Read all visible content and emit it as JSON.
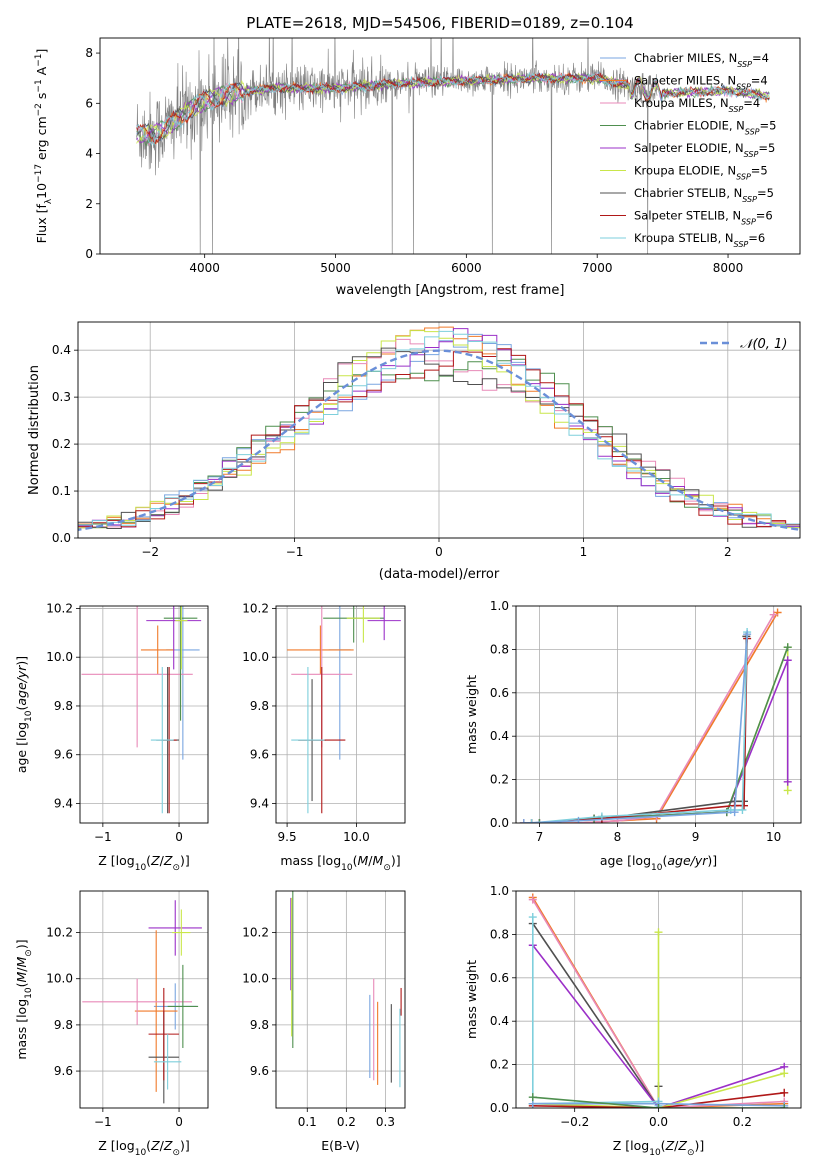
{
  "figure": {
    "title": "PLATE=2618, MJD=54506, FIBERID=0189, z=0.104"
  },
  "colors": {
    "chabrier_miles": "#7aa6e0",
    "salpeter_miles": "#f07a2a",
    "kroupa_miles": "#e88ab8",
    "chabrier_elodie": "#4f8f4f",
    "salpeter_elodie": "#9b30c8",
    "kroupa_elodie": "#c9e64a",
    "chabrier_stelib": "#505050",
    "salpeter_stelib": "#b01818",
    "kroupa_stelib": "#7ecfdc",
    "data_gray": "#808080",
    "normal_curve": "#6a8fd8"
  },
  "chart_data": [
    {
      "id": "spectrum",
      "type": "line",
      "xlabel": "wavelength [Angstrom, rest frame]",
      "ylabel": "Flux [f_λ10^-17 erg cm^-2 s^-1 A^-1]",
      "xlim": [
        3200,
        8550
      ],
      "ylim": [
        0,
        8.6
      ],
      "xticks": [
        "4000",
        "5000",
        "6000",
        "7000",
        "8000"
      ],
      "yticks": [
        "0",
        "2",
        "4",
        "6",
        "8"
      ],
      "grid": false,
      "legend_position": "right",
      "legend": [
        {
          "imf": "Chabrier",
          "lib": "MILES",
          "n": "4",
          "color_key": "chabrier_miles"
        },
        {
          "imf": "Salpeter",
          "lib": "MILES",
          "n": "4",
          "color_key": "salpeter_miles"
        },
        {
          "imf": "Kroupa",
          "lib": "MILES",
          "n": "4",
          "color_key": "kroupa_miles"
        },
        {
          "imf": "Chabrier",
          "lib": "ELODIE",
          "n": "5",
          "color_key": "chabrier_elodie"
        },
        {
          "imf": "Salpeter",
          "lib": "ELODIE",
          "n": "5",
          "color_key": "salpeter_elodie"
        },
        {
          "imf": "Kroupa",
          "lib": "ELODIE",
          "n": "5",
          "color_key": "kroupa_elodie"
        },
        {
          "imf": "Chabrier",
          "lib": "STELIB",
          "n": "5",
          "color_key": "chabrier_stelib"
        },
        {
          "imf": "Salpeter",
          "lib": "STELIB",
          "n": "6",
          "color_key": "salpeter_stelib"
        },
        {
          "imf": "Kroupa",
          "lib": "STELIB",
          "n": "6",
          "color_key": "kroupa_stelib"
        }
      ],
      "continuum_knots": [
        [
          3480,
          4.8
        ],
        [
          3600,
          4.75
        ],
        [
          3700,
          5.0
        ],
        [
          3800,
          5.4
        ],
        [
          3900,
          5.8
        ],
        [
          4000,
          6.1
        ],
        [
          4200,
          6.4
        ],
        [
          4500,
          6.6
        ],
        [
          5000,
          6.6
        ],
        [
          5500,
          6.8
        ],
        [
          6000,
          6.9
        ],
        [
          6500,
          7.0
        ],
        [
          7000,
          7.0
        ],
        [
          7300,
          6.6
        ],
        [
          7500,
          6.4
        ],
        [
          8000,
          6.5
        ],
        [
          8300,
          6.3
        ]
      ],
      "model_range": [
        3480,
        8320
      ],
      "data_range": [
        3480,
        7460
      ]
    },
    {
      "id": "residuals",
      "type": "line",
      "xlabel": "(data-model)/error",
      "ylabel": "Normed distribution",
      "xlim": [
        -2.5,
        2.5
      ],
      "ylim": [
        0,
        0.46
      ],
      "xticks": [
        "−2",
        "−1",
        "0",
        "1",
        "2"
      ],
      "yticks": [
        "0.0",
        "0.1",
        "0.2",
        "0.3",
        "0.4"
      ],
      "grid": true,
      "legend_position": "top-right",
      "legend_label": "𝒩(0, 1)",
      "bin_width": 0.1,
      "normal": {
        "mu": 0,
        "sigma": 1
      }
    },
    {
      "id": "age_vs_Z",
      "type": "scatter",
      "xlabel": "Z [log10(Z/Z⊙)]",
      "ylabel": "age [log10(age/yr)]",
      "xlim": [
        -1.3,
        0.38
      ],
      "ylim": [
        9.32,
        10.21
      ],
      "xticks": [
        "−1",
        "0"
      ],
      "yticks": [
        "9.4",
        "9.6",
        "9.8",
        "10.0",
        "10.2"
      ],
      "grid": true,
      "points": [
        {
          "color_key": "chabrier_miles",
          "x": 0.05,
          "xerr": 0.22,
          "y": 10.03,
          "yerr": 0.45
        },
        {
          "color_key": "salpeter_miles",
          "x": -0.28,
          "xerr": 0.22,
          "y": 10.03,
          "yerr": 0.1
        },
        {
          "color_key": "kroupa_miles",
          "x": -0.55,
          "xerr": 0.73,
          "y": 9.93,
          "yerr": 0.3
        },
        {
          "color_key": "chabrier_elodie",
          "x": 0.02,
          "xerr": 0.22,
          "y": 10.16,
          "yerr": 0.42
        },
        {
          "color_key": "salpeter_elodie",
          "x": -0.07,
          "xerr": 0.36,
          "y": 10.15,
          "yerr": 0.2
        },
        {
          "color_key": "kroupa_elodie",
          "x": 0.03,
          "xerr": 0.08,
          "y": 10.15,
          "yerr": 0.2
        },
        {
          "color_key": "chabrier_stelib",
          "x": -0.15,
          "xerr": 0.15,
          "y": 9.66,
          "yerr": 0.3
        },
        {
          "color_key": "salpeter_stelib",
          "x": -0.13,
          "xerr": 0.1,
          "y": 9.66,
          "yerr": 0.3
        },
        {
          "color_key": "kroupa_stelib",
          "x": -0.22,
          "xerr": 0.15,
          "y": 9.66,
          "yerr": 0.3
        }
      ]
    },
    {
      "id": "age_vs_mass",
      "type": "scatter",
      "xlabel": "mass [log10(M/M⊙)]",
      "ylabel": "",
      "xlim": [
        9.42,
        10.35
      ],
      "ylim": [
        9.32,
        10.21
      ],
      "xticks": [
        "9.5",
        "10.0"
      ],
      "yticks": [
        "9.4",
        "9.6",
        "9.8",
        "10.0",
        "10.2"
      ],
      "grid": true,
      "points": [
        {
          "color_key": "chabrier_miles",
          "x": 9.88,
          "xerr": 0.08,
          "y": 10.03,
          "yerr": 0.45
        },
        {
          "color_key": "salpeter_miles",
          "x": 9.74,
          "xerr": 0.24,
          "y": 10.03,
          "yerr": 0.1
        },
        {
          "color_key": "kroupa_miles",
          "x": 9.75,
          "xerr": 0.22,
          "y": 9.93,
          "yerr": 0.3
        },
        {
          "color_key": "chabrier_elodie",
          "x": 9.98,
          "xerr": 0.22,
          "y": 10.16,
          "yerr": 0.1
        },
        {
          "color_key": "salpeter_elodie",
          "x": 10.2,
          "xerr": 0.12,
          "y": 10.15,
          "yerr": 0.08
        },
        {
          "color_key": "kroupa_elodie",
          "x": 10.05,
          "xerr": 0.12,
          "y": 10.16,
          "yerr": 0.1
        },
        {
          "color_key": "chabrier_stelib",
          "x": 9.68,
          "xerr": 0.1,
          "y": 9.66,
          "yerr": 0.25
        },
        {
          "color_key": "salpeter_stelib",
          "x": 9.75,
          "xerr": 0.17,
          "y": 9.66,
          "yerr": 0.3
        },
        {
          "color_key": "kroupa_stelib",
          "x": 9.65,
          "xerr": 0.12,
          "y": 9.66,
          "yerr": 0.3
        }
      ]
    },
    {
      "id": "mass_weight_vs_age",
      "type": "line",
      "xlabel": "age [log10(age/yr)]",
      "ylabel": "mass weight",
      "xlim": [
        6.7,
        10.35
      ],
      "ylim": [
        0,
        1.0
      ],
      "xticks": [
        "7",
        "8",
        "9",
        "10"
      ],
      "yticks": [
        "0.0",
        "0.2",
        "0.4",
        "0.6",
        "0.8",
        "1.0"
      ],
      "grid": true,
      "series": [
        {
          "color_key": "salpeter_miles",
          "x": [
            6.8,
            7.5,
            8.0,
            8.5,
            10.05
          ],
          "y": [
            0.0,
            0.0,
            0.01,
            0.02,
            0.97
          ]
        },
        {
          "color_key": "kroupa_miles",
          "x": [
            6.8,
            7.5,
            8.0,
            8.5,
            10.0
          ],
          "y": [
            0.0,
            0.0,
            0.01,
            0.03,
            0.96
          ]
        },
        {
          "color_key": "kroupa_elodie",
          "x": [
            7.0,
            7.7,
            9.4,
            10.18,
            10.18
          ],
          "y": [
            0.0,
            0.02,
            0.05,
            0.81,
            0.15
          ]
        },
        {
          "color_key": "salpeter_elodie",
          "x": [
            7.0,
            7.7,
            9.4,
            10.18,
            10.18
          ],
          "y": [
            0.0,
            0.02,
            0.05,
            0.75,
            0.19
          ]
        },
        {
          "color_key": "chabrier_elodie",
          "x": [
            7.0,
            7.7,
            9.4,
            10.18
          ],
          "y": [
            0.0,
            0.02,
            0.05,
            0.81
          ]
        },
        {
          "color_key": "chabrier_stelib",
          "x": [
            6.9,
            7.8,
            9.5,
            9.62,
            9.65
          ],
          "y": [
            0.0,
            0.02,
            0.1,
            0.1,
            0.86
          ]
        },
        {
          "color_key": "salpeter_stelib",
          "x": [
            6.9,
            7.8,
            9.5,
            9.62,
            9.66
          ],
          "y": [
            0.0,
            0.02,
            0.08,
            0.08,
            0.85
          ]
        },
        {
          "color_key": "kroupa_stelib",
          "x": [
            6.9,
            7.8,
            9.45,
            9.6,
            9.66
          ],
          "y": [
            0.0,
            0.03,
            0.06,
            0.06,
            0.88
          ]
        },
        {
          "color_key": "chabrier_miles",
          "x": [
            6.8,
            7.5,
            9.5,
            9.66
          ],
          "y": [
            0.0,
            0.01,
            0.05,
            0.87
          ]
        }
      ]
    },
    {
      "id": "mass_vs_Z",
      "type": "scatter",
      "xlabel": "Z [log10(Z/Z⊙)]",
      "ylabel": "mass [log10(M/M⊙)]",
      "xlim": [
        -1.3,
        0.38
      ],
      "ylim": [
        9.44,
        10.38
      ],
      "xticks": [
        "−1",
        "0"
      ],
      "yticks": [
        "9.6",
        "9.8",
        "10.0",
        "10.2"
      ],
      "grid": true,
      "points": [
        {
          "color_key": "chabrier_miles",
          "x": -0.05,
          "xerr": 0.28,
          "y": 9.88,
          "yerr": 0.1
        },
        {
          "color_key": "salpeter_miles",
          "x": -0.3,
          "xerr": 0.28,
          "y": 9.86,
          "yerr": 0.35
        },
        {
          "color_key": "kroupa_miles",
          "x": -0.55,
          "xerr": 0.72,
          "y": 9.9,
          "yerr": 0.1
        },
        {
          "color_key": "chabrier_elodie",
          "x": 0.05,
          "xerr": 0.2,
          "y": 9.88,
          "yerr": 0.18
        },
        {
          "color_key": "salpeter_elodie",
          "x": -0.05,
          "xerr": 0.35,
          "y": 10.22,
          "yerr": 0.12
        },
        {
          "color_key": "kroupa_elodie",
          "x": 0.03,
          "xerr": 0.12,
          "y": 10.2,
          "yerr": 0.1
        },
        {
          "color_key": "chabrier_stelib",
          "x": -0.2,
          "xerr": 0.2,
          "y": 9.66,
          "yerr": 0.2
        },
        {
          "color_key": "salpeter_stelib",
          "x": -0.2,
          "xerr": 0.2,
          "y": 9.76,
          "yerr": 0.2
        },
        {
          "color_key": "kroupa_stelib",
          "x": -0.15,
          "xerr": 0.18,
          "y": 9.64,
          "yerr": 0.12
        }
      ]
    },
    {
      "id": "mass_vs_EBV",
      "type": "scatter",
      "xlabel": "E(B-V)",
      "ylabel": "",
      "xlim": [
        0.02,
        0.35
      ],
      "ylim": [
        9.44,
        10.38
      ],
      "xticks": [
        "0.1",
        "0.2",
        "0.3"
      ],
      "yticks": [
        "9.6",
        "9.8",
        "10.0",
        "10.2"
      ],
      "grid": true,
      "points": [
        {
          "color_key": "chabrier_elodie",
          "x": 0.063,
          "xerr": 0,
          "y": 10.05,
          "yerr": 0.35
        },
        {
          "color_key": "salpeter_elodie",
          "x": 0.058,
          "xerr": 0,
          "y": 10.15,
          "yerr": 0.2
        },
        {
          "color_key": "kroupa_elodie",
          "x": 0.06,
          "xerr": 0,
          "y": 10.05,
          "yerr": 0.3
        },
        {
          "color_key": "chabrier_miles",
          "x": 0.26,
          "xerr": 0,
          "y": 9.75,
          "yerr": 0.18
        },
        {
          "color_key": "kroupa_miles",
          "x": 0.27,
          "xerr": 0,
          "y": 9.78,
          "yerr": 0.22
        },
        {
          "color_key": "salpeter_miles",
          "x": 0.28,
          "xerr": 0,
          "y": 9.72,
          "yerr": 0.18
        },
        {
          "color_key": "chabrier_stelib",
          "x": 0.315,
          "xerr": 0,
          "y": 9.72,
          "yerr": 0.17
        },
        {
          "color_key": "salpeter_stelib",
          "x": 0.34,
          "xerr": 0,
          "y": 9.9,
          "yerr": 0.06
        },
        {
          "color_key": "kroupa_stelib",
          "x": 0.337,
          "xerr": 0,
          "y": 9.7,
          "yerr": 0.17
        }
      ]
    },
    {
      "id": "mass_weight_vs_Z",
      "type": "line",
      "xlabel": "Z [log10(Z/Z⊙)]",
      "ylabel": "mass weight",
      "xlim": [
        -0.34,
        0.34
      ],
      "ylim": [
        0,
        1.0
      ],
      "xticks": [
        "−0.2",
        "0.0",
        "0.2"
      ],
      "yticks": [
        "0.0",
        "0.2",
        "0.4",
        "0.6",
        "0.8",
        "1.0"
      ],
      "grid": true,
      "series": [
        {
          "color_key": "salpeter_miles",
          "x": [
            -0.3,
            0.0,
            0.3
          ],
          "y": [
            0.97,
            0.0,
            0.02
          ]
        },
        {
          "color_key": "kroupa_miles",
          "x": [
            -0.3,
            0.0,
            0.3
          ],
          "y": [
            0.96,
            0.0,
            0.03
          ]
        },
        {
          "color_key": "chabrier_stelib",
          "x": [
            -0.3,
            0.0,
            0.0
          ],
          "y": [
            0.85,
            0.0,
            0.1
          ]
        },
        {
          "color_key": "salpeter_elodie",
          "x": [
            -0.3,
            0.0,
            0.3
          ],
          "y": [
            0.75,
            0.0,
            0.19
          ]
        },
        {
          "color_key": "kroupa_elodie",
          "x": [
            -0.3,
            0.0,
            0.0,
            0.0,
            0.3
          ],
          "y": [
            0.02,
            0.0,
            0.81,
            0.0,
            0.16
          ]
        },
        {
          "color_key": "salpeter_stelib",
          "x": [
            -0.3,
            0.0,
            0.3
          ],
          "y": [
            0.01,
            0.0,
            0.07
          ]
        },
        {
          "color_key": "kroupa_stelib",
          "x": [
            -0.3,
            -0.3,
            0.0,
            0.0
          ],
          "y": [
            0.88,
            0.02,
            0.03,
            0.01
          ]
        },
        {
          "color_key": "chabrier_miles",
          "x": [
            -0.3,
            0.0,
            0.3
          ],
          "y": [
            0.02,
            0.02,
            0.01
          ]
        },
        {
          "color_key": "chabrier_elodie",
          "x": [
            -0.3,
            0.0,
            0.3
          ],
          "y": [
            0.05,
            0.0,
            0.0
          ]
        }
      ]
    }
  ]
}
